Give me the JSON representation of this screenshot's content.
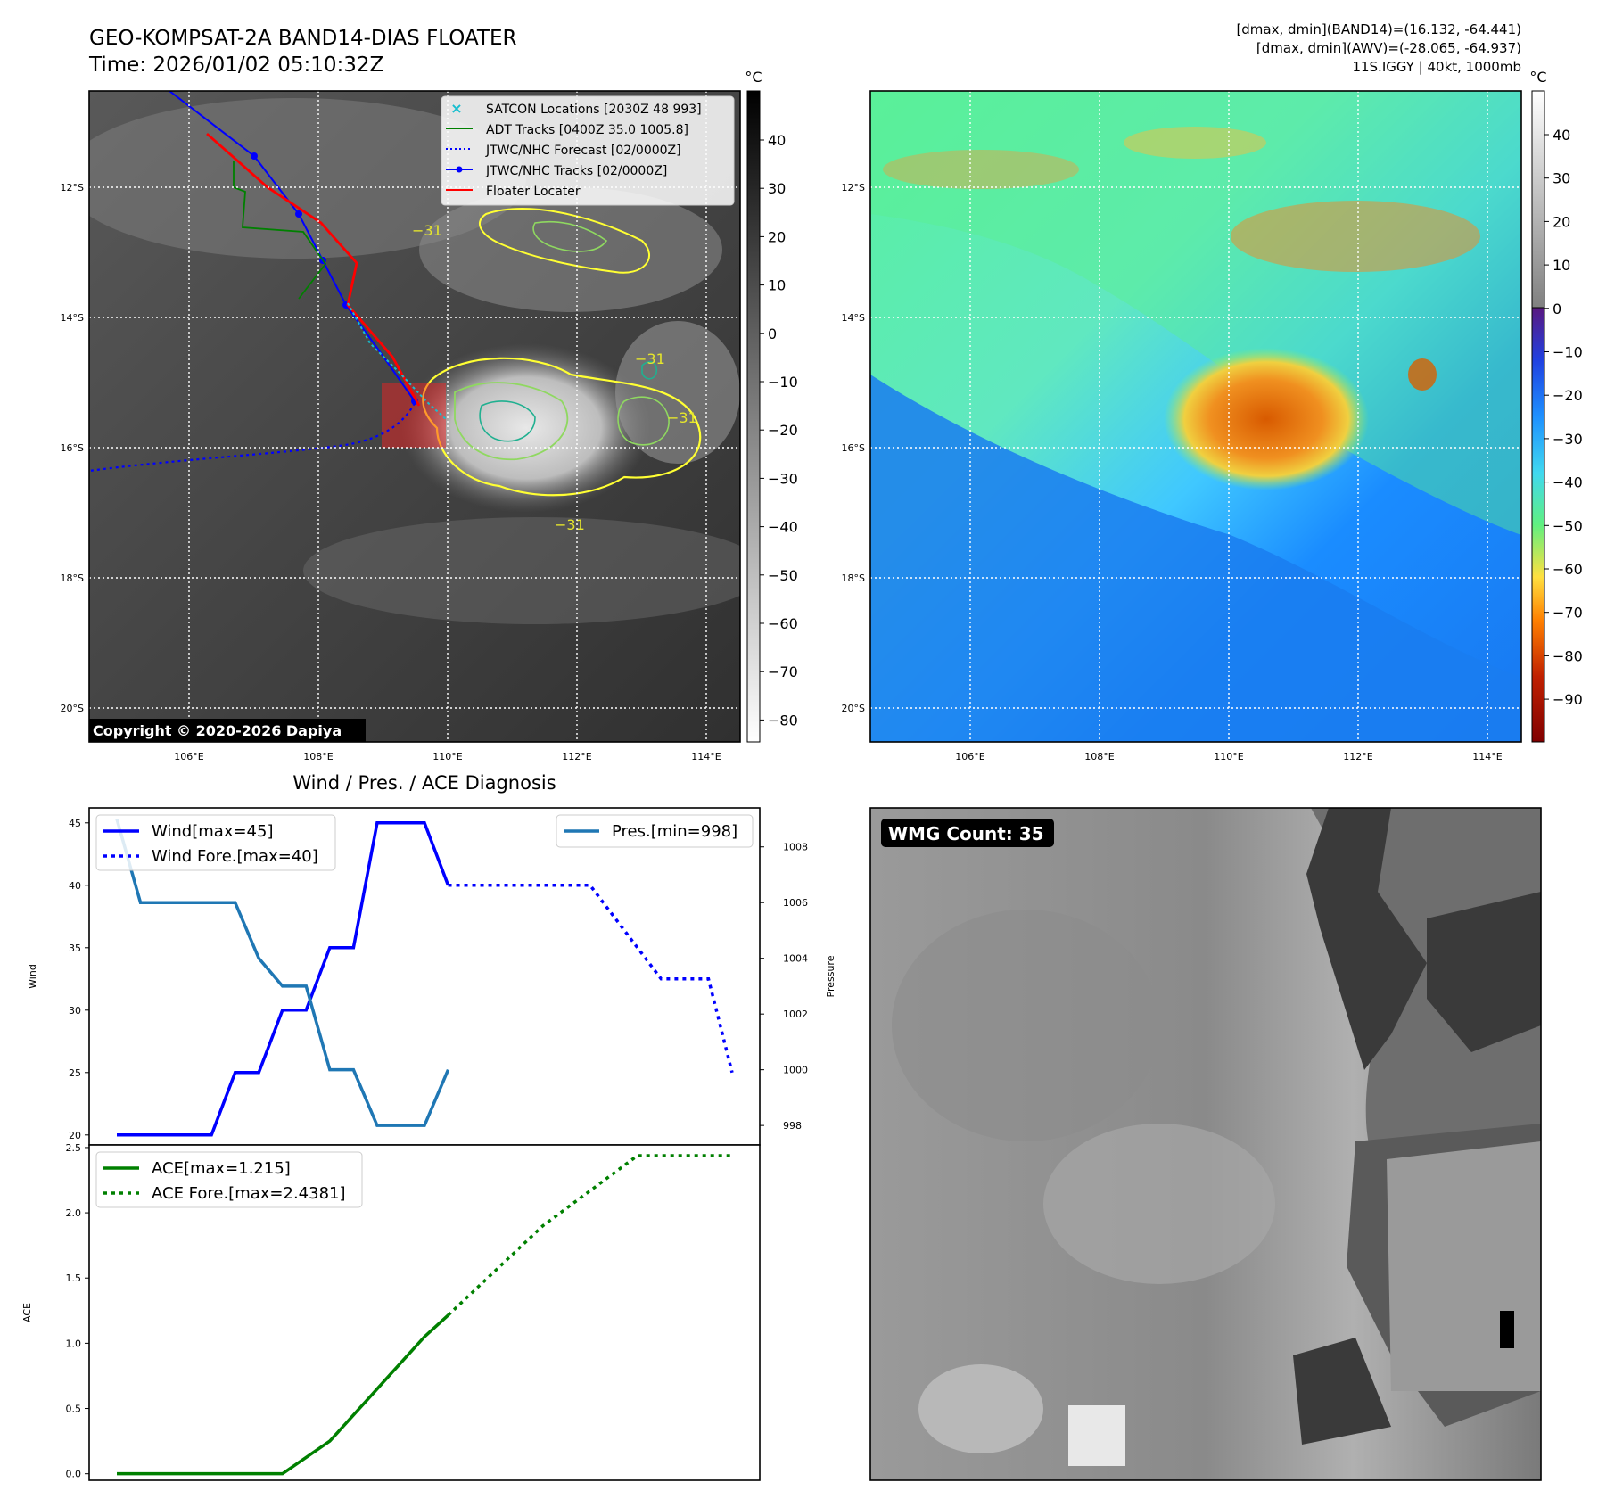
{
  "header": {
    "title_line1": "GEO-KOMPSAT-2A BAND14-DIAS FLOATER",
    "title_line2": "Time: 2026/01/02 05:10:32Z",
    "info_line1": "[dmax, dmin](BAND14)=(16.132, -64.441)",
    "info_line2": "[dmax, dmin](AWV)=(-28.065, -64.937)",
    "info_line3": "11S.IGGY | 40kt, 1000mb"
  },
  "map_axes": {
    "lat_labels": [
      "12°S",
      "14°S",
      "16°S",
      "18°S",
      "20°S"
    ],
    "lon_labels": [
      "106°E",
      "108°E",
      "110°E",
      "112°E",
      "114°E"
    ],
    "contour_label": "−31"
  },
  "ir_panel": {
    "copyright": "Copyright © 2020-2026 Dapiya",
    "colorbar_unit": "°C",
    "colorbar_ticks": [
      "40",
      "30",
      "20",
      "10",
      "0",
      "−10",
      "−20",
      "−30",
      "−40",
      "−50",
      "−60",
      "−70",
      "−80"
    ],
    "legend": [
      {
        "label": "SATCON Locations [2030Z 48 993]",
        "color": "#17becf"
      },
      {
        "label": "ADT Tracks [0400Z 35.0 1005.8]",
        "color": "#008000"
      },
      {
        "label": "JTWC/NHC Forecast [02/0000Z]",
        "color": "#0000ff"
      },
      {
        "label": "JTWC/NHC Tracks [02/0000Z]",
        "color": "#0000ff"
      },
      {
        "label": "Floater Locater",
        "color": "#ff0000"
      }
    ]
  },
  "wv_panel": {
    "colorbar_unit": "°C",
    "colorbar_ticks": [
      "40",
      "30",
      "20",
      "10",
      "0",
      "−10",
      "−20",
      "−30",
      "−40",
      "−50",
      "−60",
      "−70",
      "−80",
      "−90"
    ]
  },
  "wmg_panel": {
    "label": "WMG Count: 35"
  },
  "chart_data": [
    {
      "type": "line",
      "title": "Wind / Pres. / ACE Diagnosis",
      "ylabel": "Wind",
      "ylabel_right": "Pressure",
      "ylim": [
        19.2,
        46.2
      ],
      "ylim_right": [
        997.3,
        1009.4
      ],
      "yticks": [
        20,
        25,
        30,
        35,
        40,
        45
      ],
      "yticks_right": [
        998,
        1000,
        1002,
        1004,
        1006,
        1008
      ],
      "series": [
        {
          "name": "Wind[max=45]",
          "color": "#0000ff",
          "style": "solid",
          "x": [
            0,
            3,
            4,
            5,
            6,
            7,
            8,
            9,
            10,
            11,
            12,
            13,
            14
          ],
          "values": [
            20,
            20,
            20,
            25,
            25,
            30,
            30,
            35,
            35,
            45,
            45,
            45,
            40
          ]
        },
        {
          "name": "Wind Fore.[max=40]",
          "color": "#0000ff",
          "style": "dotted",
          "x": [
            14,
            20,
            22,
            23,
            25,
            26
          ],
          "values": [
            40,
            40,
            35,
            32.5,
            32.5,
            25
          ]
        },
        {
          "name": "Pres.[min=998]",
          "color": "#1f77b4",
          "style": "solid",
          "axis": "right",
          "x": [
            0,
            1,
            2,
            5,
            6,
            7,
            8,
            9,
            10,
            11,
            12,
            13,
            14
          ],
          "values": [
            1009,
            1006,
            1006,
            1006,
            1004,
            1003,
            1003,
            1000,
            1000,
            998,
            998,
            998,
            1000
          ]
        }
      ]
    },
    {
      "type": "line",
      "ylabel": "ACE",
      "ylim": [
        -0.05,
        2.52
      ],
      "yticks": [
        0.0,
        0.5,
        1.0,
        1.5,
        2.0,
        2.5
      ],
      "ytick_labels": [
        "0.0",
        "0.5",
        "1.0",
        "1.5",
        "2.0",
        "2.5"
      ],
      "series": [
        {
          "name": "ACE[max=1.215]",
          "color": "#008000",
          "style": "solid",
          "x": [
            0,
            7,
            9,
            11,
            13,
            14
          ],
          "values": [
            0,
            0,
            0.25,
            0.65,
            1.05,
            1.215
          ]
        },
        {
          "name": "ACE Fore.[max=2.4381]",
          "color": "#008000",
          "style": "dotted",
          "x": [
            14,
            18,
            22,
            26
          ],
          "values": [
            1.215,
            1.9,
            2.4381,
            2.4381
          ]
        }
      ]
    }
  ]
}
